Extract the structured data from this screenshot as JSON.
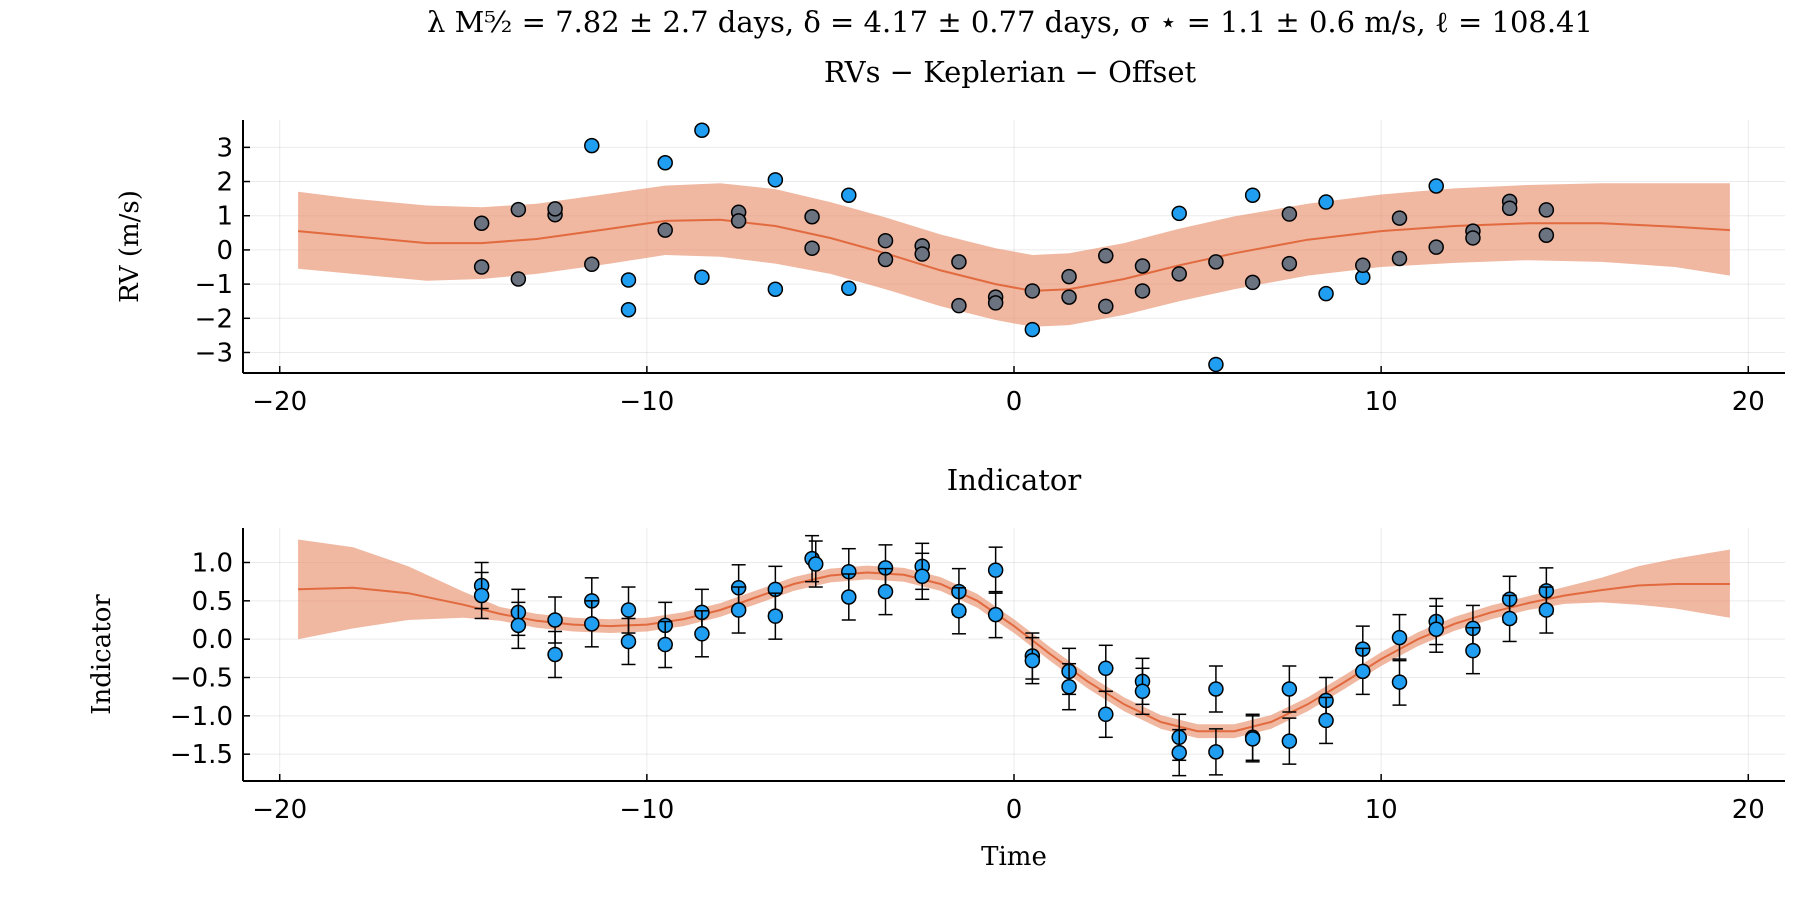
{
  "figure": {
    "title_line1": "λ M⁵⁄₂ = 7.82 ± 2.7 days,  δ = 4.17 ± 0.77 days,  σ ⋆ = 1.1 ± 0.6 m/s,  ℓ = 108.41",
    "title_line2": "RVs − Keplerian − Offset"
  },
  "colors": {
    "band": "#e8906f",
    "band_opacity": 0.65,
    "mean_line": "#e26a3f",
    "point_blue": "#1f9ef2",
    "point_gray": "#6b7280",
    "marker_edge": "#000000",
    "error_bar": "#000000"
  },
  "chart_data": [
    {
      "type": "scatter",
      "title": "",
      "xlabel": "",
      "ylabel": "RV (m/s)",
      "xlim": [
        -21,
        21
      ],
      "ylim": [
        -3.6,
        3.8
      ],
      "xticks": [
        -20,
        -10,
        0,
        10,
        20
      ],
      "xtick_labels": [
        "−20",
        "−10",
        "0",
        "10",
        "20"
      ],
      "yticks": [
        -3,
        -2,
        -1,
        0,
        1,
        2,
        3
      ],
      "ytick_labels": [
        "−3",
        "−2",
        "−1",
        "0",
        "1",
        "2",
        "3"
      ],
      "grid": true,
      "legend": "none",
      "gp_model": {
        "x": [
          -19.5,
          -18,
          -16,
          -14.5,
          -13,
          -11,
          -9.5,
          -8,
          -6.5,
          -5,
          -3.5,
          -2,
          -0.5,
          0.5,
          1.5,
          3,
          4.5,
          6,
          8,
          10,
          12,
          14,
          16,
          18,
          19.5
        ],
        "mean": [
          0.55,
          0.4,
          0.2,
          0.2,
          0.32,
          0.62,
          0.85,
          0.88,
          0.7,
          0.35,
          -0.1,
          -0.6,
          -1.0,
          -1.2,
          -1.15,
          -0.85,
          -0.45,
          -0.1,
          0.3,
          0.55,
          0.7,
          0.78,
          0.78,
          0.68,
          0.58
        ],
        "upper": [
          1.7,
          1.5,
          1.3,
          1.25,
          1.35,
          1.65,
          1.88,
          1.95,
          1.78,
          1.4,
          0.95,
          0.45,
          0.05,
          -0.15,
          -0.1,
          0.2,
          0.62,
          0.98,
          1.35,
          1.62,
          1.8,
          1.9,
          1.95,
          1.95,
          1.95
        ],
        "lower": [
          -0.55,
          -0.7,
          -0.9,
          -0.85,
          -0.7,
          -0.4,
          -0.15,
          -0.2,
          -0.4,
          -0.7,
          -1.15,
          -1.65,
          -2.05,
          -2.25,
          -2.2,
          -1.9,
          -1.5,
          -1.15,
          -0.75,
          -0.5,
          -0.38,
          -0.3,
          -0.35,
          -0.5,
          -0.75
        ]
      },
      "series": [
        {
          "color_key": "point_blue",
          "points": [
            [
              -11.5,
              3.05
            ],
            [
              -10.5,
              -0.88
            ],
            [
              -10.5,
              -1.75
            ],
            [
              -9.5,
              2.55
            ],
            [
              -8.5,
              3.5
            ],
            [
              -8.5,
              -0.8
            ],
            [
              -6.5,
              2.05
            ],
            [
              -6.5,
              -1.15
            ],
            [
              -4.5,
              1.6
            ],
            [
              -4.5,
              -1.12
            ],
            [
              0.5,
              -2.33
            ],
            [
              4.5,
              1.07
            ],
            [
              5.5,
              -3.35
            ],
            [
              6.5,
              1.6
            ],
            [
              8.5,
              1.4
            ],
            [
              8.5,
              -1.28
            ],
            [
              9.5,
              -0.8
            ],
            [
              11.5,
              1.87
            ]
          ]
        },
        {
          "color_key": "point_gray",
          "points": [
            [
              -14.5,
              0.78
            ],
            [
              -14.5,
              -0.5
            ],
            [
              -13.5,
              1.18
            ],
            [
              -13.5,
              -0.85
            ],
            [
              -12.5,
              1.03
            ],
            [
              -12.5,
              1.2
            ],
            [
              -11.5,
              -0.42
            ],
            [
              -9.5,
              0.58
            ],
            [
              -7.5,
              1.1
            ],
            [
              -7.5,
              0.85
            ],
            [
              -5.5,
              0.97
            ],
            [
              -5.5,
              0.05
            ],
            [
              -3.5,
              0.27
            ],
            [
              -3.5,
              -0.28
            ],
            [
              -2.5,
              0.12
            ],
            [
              -2.5,
              -0.12
            ],
            [
              -1.5,
              -0.35
            ],
            [
              -1.5,
              -1.63
            ],
            [
              -0.5,
              -1.38
            ],
            [
              -0.5,
              -1.55
            ],
            [
              0.5,
              -1.2
            ],
            [
              1.5,
              -0.78
            ],
            [
              1.5,
              -1.38
            ],
            [
              2.5,
              -0.17
            ],
            [
              2.5,
              -1.65
            ],
            [
              3.5,
              -0.47
            ],
            [
              3.5,
              -1.2
            ],
            [
              4.5,
              -0.7
            ],
            [
              5.5,
              -0.35
            ],
            [
              6.5,
              -0.95
            ],
            [
              7.5,
              1.05
            ],
            [
              7.5,
              -0.4
            ],
            [
              9.5,
              -0.45
            ],
            [
              10.5,
              0.93
            ],
            [
              10.5,
              -0.25
            ],
            [
              11.5,
              0.08
            ],
            [
              12.5,
              0.55
            ],
            [
              12.5,
              0.35
            ],
            [
              13.5,
              1.42
            ],
            [
              13.5,
              1.22
            ],
            [
              14.5,
              1.17
            ],
            [
              14.5,
              0.43
            ]
          ]
        }
      ]
    },
    {
      "type": "scatter",
      "title": "Indicator",
      "xlabel": "Time",
      "ylabel": "Indicator",
      "xlim": [
        -21,
        21
      ],
      "ylim": [
        -1.85,
        1.45
      ],
      "xticks": [
        -20,
        -10,
        0,
        10,
        20
      ],
      "xtick_labels": [
        "−20",
        "−10",
        "0",
        "10",
        "20"
      ],
      "yticks": [
        -1.5,
        -1.0,
        -0.5,
        0.0,
        0.5,
        1.0
      ],
      "ytick_labels": [
        "−1.5",
        "−1.0",
        "−0.5",
        "0.0",
        "0.5",
        "1.0"
      ],
      "grid": true,
      "legend": "none",
      "gp_model": {
        "x": [
          -19.5,
          -18,
          -16.5,
          -15,
          -14,
          -13,
          -12,
          -11,
          -10,
          -9,
          -8,
          -7,
          -6,
          -5,
          -4,
          -3,
          -2,
          -1,
          0,
          1,
          2,
          3,
          4,
          5,
          6,
          7,
          8,
          9,
          10,
          11,
          12,
          13,
          14,
          15,
          16,
          17,
          18,
          19.5
        ],
        "mean": [
          0.65,
          0.67,
          0.6,
          0.45,
          0.33,
          0.24,
          0.19,
          0.17,
          0.19,
          0.26,
          0.38,
          0.55,
          0.72,
          0.83,
          0.87,
          0.84,
          0.72,
          0.5,
          0.17,
          -0.2,
          -0.55,
          -0.85,
          -1.08,
          -1.2,
          -1.2,
          -1.08,
          -0.85,
          -0.56,
          -0.26,
          0.0,
          0.2,
          0.35,
          0.47,
          0.57,
          0.64,
          0.7,
          0.72,
          0.72
        ],
        "upper": [
          1.3,
          1.2,
          0.95,
          0.62,
          0.42,
          0.33,
          0.28,
          0.26,
          0.28,
          0.35,
          0.47,
          0.64,
          0.81,
          0.92,
          0.96,
          0.93,
          0.81,
          0.59,
          0.26,
          -0.11,
          -0.46,
          -0.76,
          -0.99,
          -1.11,
          -1.11,
          -0.99,
          -0.76,
          -0.47,
          -0.17,
          0.09,
          0.29,
          0.44,
          0.56,
          0.68,
          0.8,
          0.95,
          1.05,
          1.17
        ],
        "lower": [
          0.0,
          0.14,
          0.25,
          0.28,
          0.24,
          0.15,
          0.1,
          0.08,
          0.1,
          0.17,
          0.29,
          0.46,
          0.63,
          0.74,
          0.78,
          0.75,
          0.63,
          0.41,
          0.08,
          -0.29,
          -0.64,
          -0.94,
          -1.17,
          -1.29,
          -1.29,
          -1.17,
          -0.94,
          -0.65,
          -0.35,
          -0.09,
          0.11,
          0.26,
          0.38,
          0.46,
          0.48,
          0.45,
          0.4,
          0.28
        ]
      },
      "series": [
        {
          "color_key": "point_blue",
          "error": 0.3,
          "points": [
            [
              -14.5,
              0.7
            ],
            [
              -14.5,
              0.57
            ],
            [
              -13.5,
              0.35
            ],
            [
              -13.5,
              0.18
            ],
            [
              -12.5,
              0.25
            ],
            [
              -12.5,
              -0.2
            ],
            [
              -11.5,
              0.5
            ],
            [
              -11.5,
              0.2
            ],
            [
              -10.5,
              0.38
            ],
            [
              -10.5,
              -0.03
            ],
            [
              -9.5,
              0.18
            ],
            [
              -9.5,
              -0.07
            ],
            [
              -8.5,
              0.35
            ],
            [
              -8.5,
              0.07
            ],
            [
              -7.5,
              0.67
            ],
            [
              -7.5,
              0.38
            ],
            [
              -6.5,
              0.65
            ],
            [
              -6.5,
              0.3
            ],
            [
              -5.5,
              1.05
            ],
            [
              -5.4,
              0.98
            ],
            [
              -4.5,
              0.88
            ],
            [
              -4.5,
              0.55
            ],
            [
              -3.5,
              0.93
            ],
            [
              -3.5,
              0.62
            ],
            [
              -2.5,
              0.95
            ],
            [
              -2.5,
              0.82
            ],
            [
              -1.5,
              0.62
            ],
            [
              -1.5,
              0.37
            ],
            [
              -0.5,
              0.9
            ],
            [
              -0.5,
              0.32
            ],
            [
              0.5,
              -0.22
            ],
            [
              0.5,
              -0.28
            ],
            [
              1.5,
              -0.42
            ],
            [
              1.5,
              -0.62
            ],
            [
              2.5,
              -0.38
            ],
            [
              2.5,
              -0.98
            ],
            [
              3.5,
              -0.55
            ],
            [
              3.5,
              -0.68
            ],
            [
              4.5,
              -1.28
            ],
            [
              4.5,
              -1.48
            ],
            [
              5.5,
              -0.65
            ],
            [
              5.5,
              -1.47
            ],
            [
              6.5,
              -1.28
            ],
            [
              6.5,
              -1.3
            ],
            [
              7.5,
              -0.65
            ],
            [
              7.5,
              -1.33
            ],
            [
              8.5,
              -0.8
            ],
            [
              8.5,
              -1.06
            ],
            [
              9.5,
              -0.13
            ],
            [
              9.5,
              -0.42
            ],
            [
              10.5,
              0.02
            ],
            [
              10.5,
              -0.56
            ],
            [
              11.5,
              0.23
            ],
            [
              11.5,
              0.13
            ],
            [
              12.5,
              0.14
            ],
            [
              12.5,
              -0.15
            ],
            [
              13.5,
              0.52
            ],
            [
              13.5,
              0.27
            ],
            [
              14.5,
              0.63
            ],
            [
              14.5,
              0.38
            ]
          ]
        }
      ]
    }
  ]
}
